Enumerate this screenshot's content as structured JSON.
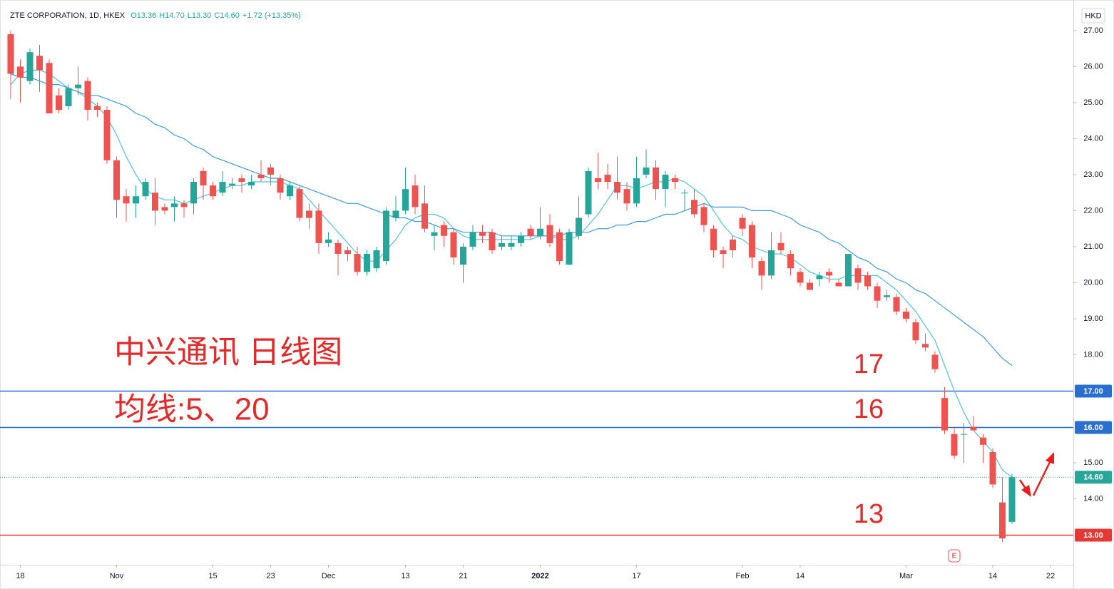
{
  "chart_data": {
    "type": "candlestick",
    "title": "ZTE CORPORATION, 1D, HKEX",
    "legend_values": [
      "O13.36",
      "H14.70",
      "L13.30",
      "C14.60",
      "+1.72 (+13.35%)"
    ],
    "y_unit": "HKD",
    "categories": [
      null,
      "18",
      null,
      null,
      null,
      null,
      null,
      null,
      null,
      null,
      null,
      "Nov",
      null,
      null,
      null,
      null,
      null,
      null,
      null,
      null,
      null,
      "15",
      null,
      null,
      null,
      null,
      null,
      "23",
      null,
      null,
      null,
      null,
      null,
      "Dec",
      null,
      null,
      null,
      null,
      null,
      null,
      null,
      "13",
      null,
      null,
      null,
      null,
      null,
      "21",
      null,
      null,
      null,
      null,
      null,
      null,
      null,
      "2022",
      null,
      null,
      null,
      null,
      null,
      null,
      null,
      null,
      null,
      "17",
      null,
      null,
      null,
      null,
      null,
      null,
      null,
      null,
      null,
      null,
      "Feb",
      null,
      null,
      null,
      null,
      null,
      "14",
      null,
      null,
      null,
      null,
      null,
      null,
      null,
      null,
      null,
      null,
      "Mar",
      null,
      null,
      null,
      null,
      null,
      null,
      null,
      null,
      "14",
      null,
      null,
      null,
      null,
      null,
      "22"
    ],
    "open": [
      26.9,
      26.0,
      25.6,
      26.3,
      26.1,
      25.2,
      24.9,
      25.4,
      25.6,
      24.9,
      24.8,
      23.4,
      22.4,
      22.2,
      22.4,
      22.5,
      22.1,
      22.1,
      22.2,
      22.2,
      23.1,
      22.7,
      22.5,
      22.7,
      22.9,
      22.7,
      23.0,
      23.2,
      22.9,
      22.4,
      22.6,
      22.0,
      22.0,
      21.1,
      21.1,
      20.9,
      20.8,
      20.3,
      20.4,
      20.6,
      21.8,
      22.0,
      22.7,
      22.2,
      21.3,
      21.6,
      21.4,
      20.5,
      21.0,
      21.4,
      21.4,
      21.0,
      21.0,
      21.1,
      21.5,
      21.3,
      21.6,
      21.4,
      20.5,
      21.3,
      21.9,
      22.9,
      23.0,
      22.8,
      22.6,
      22.2,
      23.0,
      23.2,
      22.6,
      22.9,
      22.5,
      22.3,
      22.1,
      21.5,
      20.9,
      21.2,
      21.8,
      21.6,
      20.6,
      20.2,
      21.1,
      20.8,
      20.3,
      20.0,
      20.1,
      20.3,
      20.0,
      19.9,
      20.4,
      20.2,
      19.9,
      19.6,
      19.6,
      19.2,
      18.9,
      18.3,
      18.0,
      16.8,
      15.8,
      15.8,
      16.0,
      15.7,
      15.3,
      13.9,
      13.36,
      null,
      null,
      null,
      null
    ],
    "high": [
      27.0,
      26.2,
      26.5,
      26.6,
      26.2,
      25.4,
      25.5,
      26.0,
      25.7,
      25.0,
      24.9,
      23.5,
      22.6,
      22.7,
      22.9,
      22.9,
      22.2,
      22.4,
      22.3,
      22.9,
      23.2,
      22.8,
      23.1,
      22.9,
      23.0,
      23.0,
      23.4,
      23.3,
      23.0,
      22.8,
      22.7,
      22.2,
      22.2,
      21.4,
      21.2,
      21.0,
      21.0,
      20.9,
      21.0,
      22.1,
      22.4,
      23.2,
      23.0,
      22.7,
      21.6,
      21.7,
      21.5,
      21.1,
      21.6,
      21.6,
      21.5,
      21.3,
      21.3,
      21.4,
      21.6,
      22.1,
      21.9,
      21.5,
      21.5,
      22.4,
      23.2,
      23.6,
      23.3,
      23.5,
      22.8,
      23.5,
      23.7,
      23.4,
      23.1,
      23.0,
      22.6,
      22.6,
      22.2,
      21.6,
      21.0,
      21.3,
      21.9,
      21.7,
      20.7,
      21.4,
      21.4,
      20.9,
      20.4,
      20.1,
      20.3,
      20.4,
      20.1,
      20.8,
      20.5,
      20.3,
      20.0,
      19.8,
      19.7,
      19.3,
      19.0,
      18.6,
      18.1,
      17.1,
      16.0,
      16.1,
      16.3,
      15.8,
      15.4,
      14.6,
      14.7,
      null,
      null,
      null,
      null
    ],
    "low": [
      25.1,
      25.0,
      25.5,
      25.3,
      24.7,
      24.7,
      24.8,
      25.2,
      24.5,
      24.6,
      23.3,
      21.8,
      21.7,
      21.8,
      22.3,
      21.6,
      21.9,
      21.7,
      21.8,
      21.9,
      22.3,
      22.3,
      22.4,
      22.6,
      22.5,
      22.6,
      22.8,
      22.7,
      22.3,
      22.3,
      21.7,
      21.5,
      20.8,
      21.0,
      20.2,
      20.6,
      20.2,
      20.2,
      20.3,
      20.5,
      21.7,
      21.9,
      21.9,
      21.4,
      20.9,
      21.0,
      20.5,
      20.0,
      20.9,
      21.1,
      20.8,
      20.9,
      20.9,
      21.0,
      21.2,
      21.2,
      21.0,
      20.5,
      20.5,
      21.2,
      21.8,
      22.6,
      22.6,
      22.3,
      22.0,
      22.1,
      22.9,
      22.3,
      22.1,
      22.6,
      22.0,
      21.8,
      21.4,
      20.7,
      20.4,
      20.7,
      21.3,
      20.4,
      19.8,
      20.1,
      20.8,
      20.2,
      19.9,
      19.8,
      19.9,
      20.0,
      19.9,
      19.9,
      19.8,
      19.8,
      19.3,
      19.5,
      19.1,
      18.9,
      18.3,
      18.1,
      17.5,
      15.8,
      15.1,
      15.0,
      15.9,
      15.0,
      14.3,
      12.8,
      13.3,
      null,
      null,
      null,
      null
    ],
    "close": [
      25.8,
      25.7,
      26.4,
      25.9,
      24.7,
      24.8,
      25.4,
      25.5,
      24.8,
      24.8,
      23.4,
      22.3,
      22.2,
      22.4,
      22.8,
      22.0,
      22.0,
      22.2,
      22.1,
      22.8,
      22.7,
      22.4,
      22.8,
      22.75,
      22.8,
      22.8,
      22.9,
      23.0,
      22.5,
      22.7,
      21.8,
      21.8,
      21.1,
      21.2,
      20.8,
      20.8,
      20.3,
      20.8,
      20.9,
      22.0,
      22.0,
      22.6,
      22.1,
      21.5,
      21.4,
      21.3,
      20.7,
      21.0,
      21.4,
      21.3,
      20.9,
      21.1,
      21.1,
      21.3,
      21.3,
      21.5,
      21.1,
      20.6,
      21.4,
      21.8,
      23.1,
      22.8,
      22.8,
      22.5,
      22.2,
      22.9,
      23.2,
      22.6,
      23.0,
      22.8,
      22.5,
      21.9,
      21.6,
      20.9,
      20.8,
      20.9,
      21.5,
      20.7,
      20.2,
      20.9,
      20.9,
      20.4,
      20.0,
      19.8,
      20.2,
      20.2,
      19.9,
      20.8,
      20.0,
      19.9,
      19.5,
      19.65,
      19.2,
      19.0,
      18.4,
      18.2,
      17.6,
      15.9,
      15.2,
      15.8,
      15.9,
      15.5,
      14.4,
      12.9,
      14.6,
      null,
      null,
      null,
      null
    ],
    "up_color": "#26a69a",
    "down_color": "#ef5350",
    "moving_averages": [
      {
        "color": "#4fc3dd",
        "values": [
          25.5,
          25.8,
          25.9,
          25.9,
          25.8,
          25.6,
          25.4,
          25.3,
          25.1,
          24.9,
          24.6,
          24.1,
          23.5,
          23.0,
          22.6,
          22.4,
          22.3,
          22.3,
          22.2,
          22.3,
          22.4,
          22.5,
          22.6,
          22.7,
          22.7,
          22.8,
          22.8,
          22.8,
          22.8,
          22.7,
          22.6,
          22.3,
          22.0,
          21.7,
          21.4,
          21.1,
          20.8,
          20.6,
          20.6,
          20.9,
          21.2,
          21.6,
          21.8,
          21.9,
          21.9,
          21.8,
          21.5,
          21.3,
          21.2,
          21.2,
          21.2,
          21.2,
          21.2,
          21.2,
          21.2,
          21.3,
          21.3,
          21.2,
          21.2,
          21.3,
          21.6,
          21.9,
          22.3,
          22.7,
          22.7,
          22.6,
          22.7,
          22.8,
          22.8,
          22.9,
          22.8,
          22.6,
          22.4,
          22.0,
          21.6,
          21.3,
          21.2,
          21.0,
          20.9,
          20.8,
          20.8,
          20.7,
          20.5,
          20.3,
          20.2,
          20.1,
          20.1,
          20.2,
          20.2,
          20.2,
          20.2,
          20.0,
          19.8,
          19.5,
          19.2,
          18.8,
          18.4,
          17.7,
          17.0,
          16.4,
          15.9,
          15.6,
          15.3,
          14.8,
          14.6,
          null,
          null,
          null,
          null
        ]
      },
      {
        "color": "#3d9ad9",
        "values": [
          25.8,
          25.7,
          25.7,
          25.6,
          25.5,
          25.5,
          25.4,
          25.3,
          25.2,
          25.2,
          25.1,
          25.0,
          24.9,
          24.7,
          24.6,
          24.4,
          24.3,
          24.1,
          24.0,
          23.8,
          23.7,
          23.5,
          23.4,
          23.3,
          23.2,
          23.1,
          23.0,
          22.9,
          22.9,
          22.8,
          22.7,
          22.6,
          22.5,
          22.4,
          22.3,
          22.2,
          22.2,
          22.1,
          22.0,
          21.9,
          21.8,
          21.8,
          21.7,
          21.7,
          21.6,
          21.5,
          21.5,
          21.4,
          21.4,
          21.4,
          21.4,
          21.3,
          21.3,
          21.3,
          21.3,
          21.3,
          21.3,
          21.3,
          21.4,
          21.4,
          21.4,
          21.5,
          21.5,
          21.6,
          21.6,
          21.7,
          21.7,
          21.8,
          21.9,
          21.9,
          22.0,
          22.1,
          22.2,
          22.1,
          22.1,
          22.1,
          22.1,
          22.0,
          22.0,
          22.0,
          21.9,
          21.8,
          21.6,
          21.5,
          21.4,
          21.2,
          21.1,
          20.9,
          20.7,
          20.6,
          20.4,
          20.3,
          20.1,
          20.0,
          19.8,
          19.7,
          19.5,
          19.3,
          19.1,
          18.9,
          18.7,
          18.5,
          18.2,
          17.9,
          17.7,
          null,
          null,
          null,
          null
        ]
      }
    ],
    "levels": [
      {
        "value": 17,
        "label": "17.00",
        "color": "#2a6fcf"
      },
      {
        "value": 16,
        "label": "16.00",
        "color": "#2a6fcf"
      },
      {
        "value": 13,
        "label": "13.00",
        "color": "#e53935"
      }
    ],
    "last_price": {
      "value": 14.6,
      "label": "14.60",
      "color": "#26a69a"
    },
    "annotations": [
      "中兴通讯 日线图",
      "均线:5、20",
      "17",
      "16",
      "13"
    ],
    "earnings_marker": "E",
    "ylim": [
      12.17,
      27.69
    ],
    "yticks": [
      {
        "value": 14,
        "label": "14.00"
      },
      {
        "value": 15,
        "label": "15.00"
      },
      {
        "value": 18,
        "label": "18.00"
      },
      {
        "value": 19,
        "label": "19.00"
      },
      {
        "value": 20,
        "label": "20.00"
      },
      {
        "value": 21,
        "label": "21.00"
      },
      {
        "value": 22,
        "label": "22.00"
      },
      {
        "value": 23,
        "label": "23.00"
      },
      {
        "value": 24,
        "label": "24.00"
      },
      {
        "value": 25,
        "label": "25.00"
      },
      {
        "value": 26,
        "label": "26.00"
      },
      {
        "value": 27,
        "label": "27.00"
      }
    ],
    "grid": false
  }
}
